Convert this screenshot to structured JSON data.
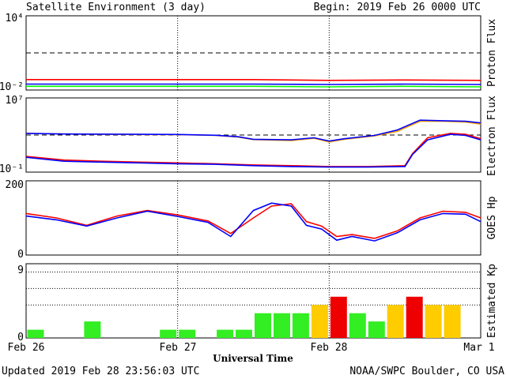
{
  "header": {
    "title": "Satellite Environment (3 day)",
    "begin": "Begin:  2019 Feb 26 0000 UTC"
  },
  "footer": {
    "updated": "Updated 2019 Feb 28 23:56:03 UTC",
    "credit": "NOAA/SWPC Boulder, CO USA"
  },
  "colors": {
    "red": "#ff0000",
    "blue": "#0000ff",
    "green": "#00ff00",
    "orange": "#ffa500",
    "kp_green": "#33ee22",
    "kp_yellow": "#ffcc00",
    "kp_red": "#ee0000"
  },
  "chart_data": [
    {
      "type": "line",
      "ylabel": "Proton Flux",
      "scale": "log",
      "ylim": [
        0.01,
        10000
      ],
      "yticks": [
        "10⁴",
        "10⁻²"
      ],
      "threshold": 10,
      "xticks": [
        "Feb 26",
        "Feb 27",
        "Feb 28",
        "Mar 1"
      ],
      "x_days": [
        0,
        1,
        2,
        3
      ],
      "series": [
        {
          "color": "red",
          "x": [
            0,
            0.5,
            1,
            1.5,
            2,
            2.5,
            3
          ],
          "values": [
            0.07,
            0.07,
            0.07,
            0.07,
            0.06,
            0.065,
            0.06
          ]
        },
        {
          "color": "blue",
          "x": [
            0,
            0.5,
            1,
            1.5,
            2,
            2.5,
            3
          ],
          "values": [
            0.03,
            0.03,
            0.03,
            0.03,
            0.028,
            0.03,
            0.028
          ]
        },
        {
          "color": "green",
          "x": [
            0,
            0.5,
            1,
            1.5,
            2,
            2.5,
            3
          ],
          "values": [
            0.02,
            0.02,
            0.02,
            0.02,
            0.018,
            0.02,
            0.018
          ]
        }
      ]
    },
    {
      "type": "line",
      "ylabel": "Electron Flux",
      "scale": "log",
      "ylim": [
        0.1,
        10000000
      ],
      "yticks": [
        "10⁷",
        "10⁻¹"
      ],
      "threshold": 1000,
      "series": [
        {
          "color": "orange",
          "x": [
            0,
            0.25,
            0.5,
            0.75,
            1,
            1.25,
            1.4,
            1.5,
            1.75,
            1.9,
            2,
            2.1,
            2.3,
            2.45,
            2.6,
            2.75,
            2.9,
            3
          ],
          "values": [
            1500,
            1300,
            1200,
            1150,
            1100,
            900,
            600,
            320,
            250,
            450,
            180,
            350,
            800,
            2500,
            30000,
            30000,
            25000,
            15000
          ]
        },
        {
          "color": "blue",
          "x": [
            0,
            0.25,
            0.5,
            0.75,
            1,
            1.25,
            1.4,
            1.5,
            1.75,
            1.9,
            2,
            2.1,
            2.3,
            2.45,
            2.6,
            2.75,
            2.9,
            3
          ],
          "values": [
            1500,
            1300,
            1250,
            1200,
            1150,
            950,
            650,
            350,
            300,
            500,
            220,
            400,
            900,
            3500,
            40000,
            35000,
            30000,
            20000
          ]
        },
        {
          "color": "red",
          "x": [
            0,
            0.25,
            0.5,
            0.75,
            1,
            1.25,
            1.5,
            1.75,
            2,
            2.25,
            2.5,
            2.55,
            2.65,
            2.8,
            2.9,
            3
          ],
          "values": [
            5,
            2,
            1.5,
            1.2,
            1,
            0.8,
            0.6,
            0.5,
            0.4,
            0.4,
            0.5,
            10,
            500,
            1500,
            1200,
            400
          ]
        },
        {
          "color": "blue",
          "x": [
            0,
            0.25,
            0.5,
            0.75,
            1,
            1.25,
            1.5,
            1.75,
            2,
            2.25,
            2.5,
            2.55,
            2.65,
            2.8,
            2.9,
            3
          ],
          "values": [
            4,
            1.5,
            1.2,
            1,
            0.8,
            0.7,
            0.5,
            0.4,
            0.35,
            0.35,
            0.4,
            8,
            300,
            1200,
            900,
            300
          ]
        }
      ]
    },
    {
      "type": "line",
      "ylabel": "GOES Hp",
      "scale": "linear",
      "ylim": [
        0,
        200
      ],
      "yticks": [
        "200",
        "0"
      ],
      "series": [
        {
          "color": "red",
          "x": [
            0,
            0.2,
            0.4,
            0.6,
            0.8,
            1,
            1.2,
            1.35,
            1.5,
            1.62,
            1.75,
            1.85,
            1.95,
            2.05,
            2.15,
            2.3,
            2.45,
            2.6,
            2.75,
            2.9,
            3
          ],
          "values": [
            112,
            100,
            80,
            105,
            120,
            108,
            92,
            58,
            100,
            132,
            138,
            90,
            78,
            50,
            55,
            45,
            65,
            100,
            118,
            115,
            100
          ]
        },
        {
          "color": "blue",
          "x": [
            0,
            0.2,
            0.4,
            0.6,
            0.8,
            1,
            1.2,
            1.35,
            1.5,
            1.62,
            1.75,
            1.85,
            1.95,
            2.05,
            2.15,
            2.3,
            2.45,
            2.6,
            2.75,
            2.9,
            3
          ],
          "values": [
            105,
            95,
            78,
            100,
            118,
            104,
            88,
            50,
            120,
            140,
            132,
            80,
            70,
            40,
            50,
            38,
            60,
            95,
            112,
            110,
            90
          ]
        }
      ]
    },
    {
      "type": "bar",
      "ylabel": "Estimated Kp",
      "ylim": [
        0,
        9
      ],
      "yticks": [
        "9",
        "0"
      ],
      "gridlines": [
        4,
        6,
        8
      ],
      "x": [
        0.0,
        0.125,
        0.25,
        0.375,
        0.5,
        0.625,
        0.75,
        0.875,
        1.0,
        1.125,
        1.25,
        1.375,
        1.5,
        1.625,
        1.75,
        1.875,
        2.0,
        2.125,
        2.25,
        2.375,
        2.5,
        2.625,
        2.75,
        2.875
      ],
      "values": [
        1,
        0,
        0,
        2,
        0,
        0,
        0,
        1,
        1,
        0,
        1,
        1,
        3,
        3,
        3,
        4,
        5,
        3,
        2,
        4,
        5,
        4,
        4,
        0
      ],
      "colors": [
        "kp_green",
        "kp_green",
        "kp_green",
        "kp_green",
        "kp_green",
        "kp_green",
        "kp_green",
        "kp_green",
        "kp_green",
        "kp_green",
        "kp_green",
        "kp_green",
        "kp_green",
        "kp_green",
        "kp_green",
        "kp_yellow",
        "kp_red",
        "kp_green",
        "kp_green",
        "kp_yellow",
        "kp_red",
        "kp_yellow",
        "kp_yellow",
        "kp_green"
      ],
      "xlabel": "Universal Time",
      "xticks": [
        "Feb 26",
        "Feb 27",
        "Feb 28",
        "Mar 1"
      ]
    }
  ]
}
